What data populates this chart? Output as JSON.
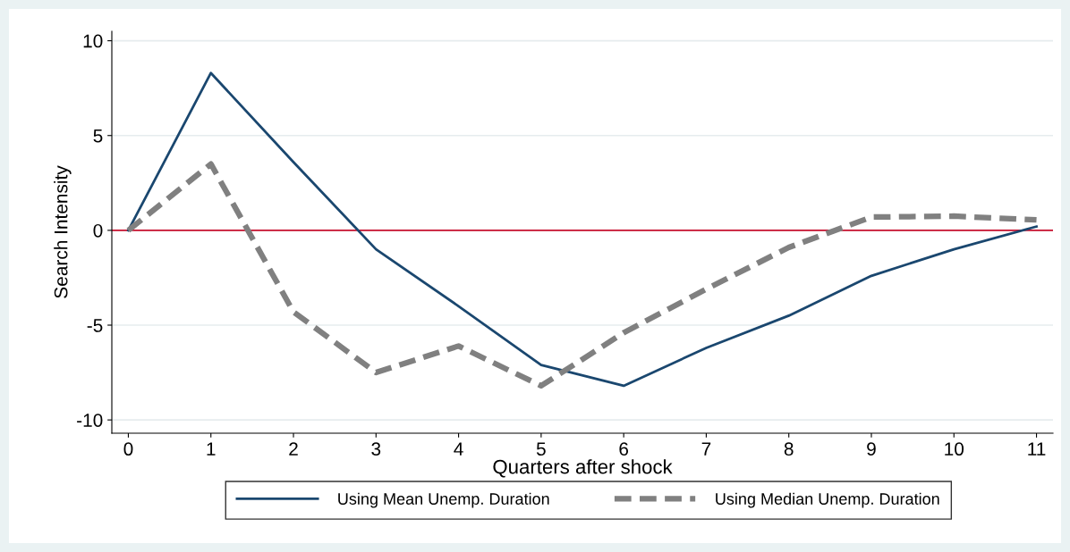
{
  "chart_data": {
    "type": "line",
    "xlabel": "Quarters after shock",
    "ylabel": "Search Intensity",
    "x": [
      0,
      1,
      2,
      3,
      4,
      5,
      6,
      7,
      8,
      9,
      10,
      11
    ],
    "series": [
      {
        "name": "Using Mean Unemp. Duration",
        "color": "#1a476f",
        "line_style": "solid",
        "values": [
          0,
          8.3,
          3.6,
          -1.0,
          -4.0,
          -7.1,
          -8.2,
          -6.2,
          -4.5,
          -2.4,
          -1.0,
          0.2
        ]
      },
      {
        "name": "Using Median Unemp. Duration",
        "color": "#808080",
        "line_style": "dashed",
        "values": [
          0,
          3.5,
          -4.3,
          -7.5,
          -6.1,
          -8.2,
          -5.4,
          -3.1,
          -0.9,
          0.7,
          0.75,
          0.55
        ]
      }
    ],
    "xlim": [
      -0.2,
      11.2
    ],
    "ylim": [
      -10.7,
      10.5
    ],
    "xticks": [
      0,
      1,
      2,
      3,
      4,
      5,
      6,
      7,
      8,
      9,
      10,
      11
    ],
    "yticks": [
      -10,
      -5,
      0,
      5,
      10
    ],
    "ref_lines": [
      {
        "axis": "y",
        "value": 0,
        "color": "#c8102e"
      }
    ],
    "grid": "y",
    "legend": "bottom",
    "marker": "none"
  }
}
